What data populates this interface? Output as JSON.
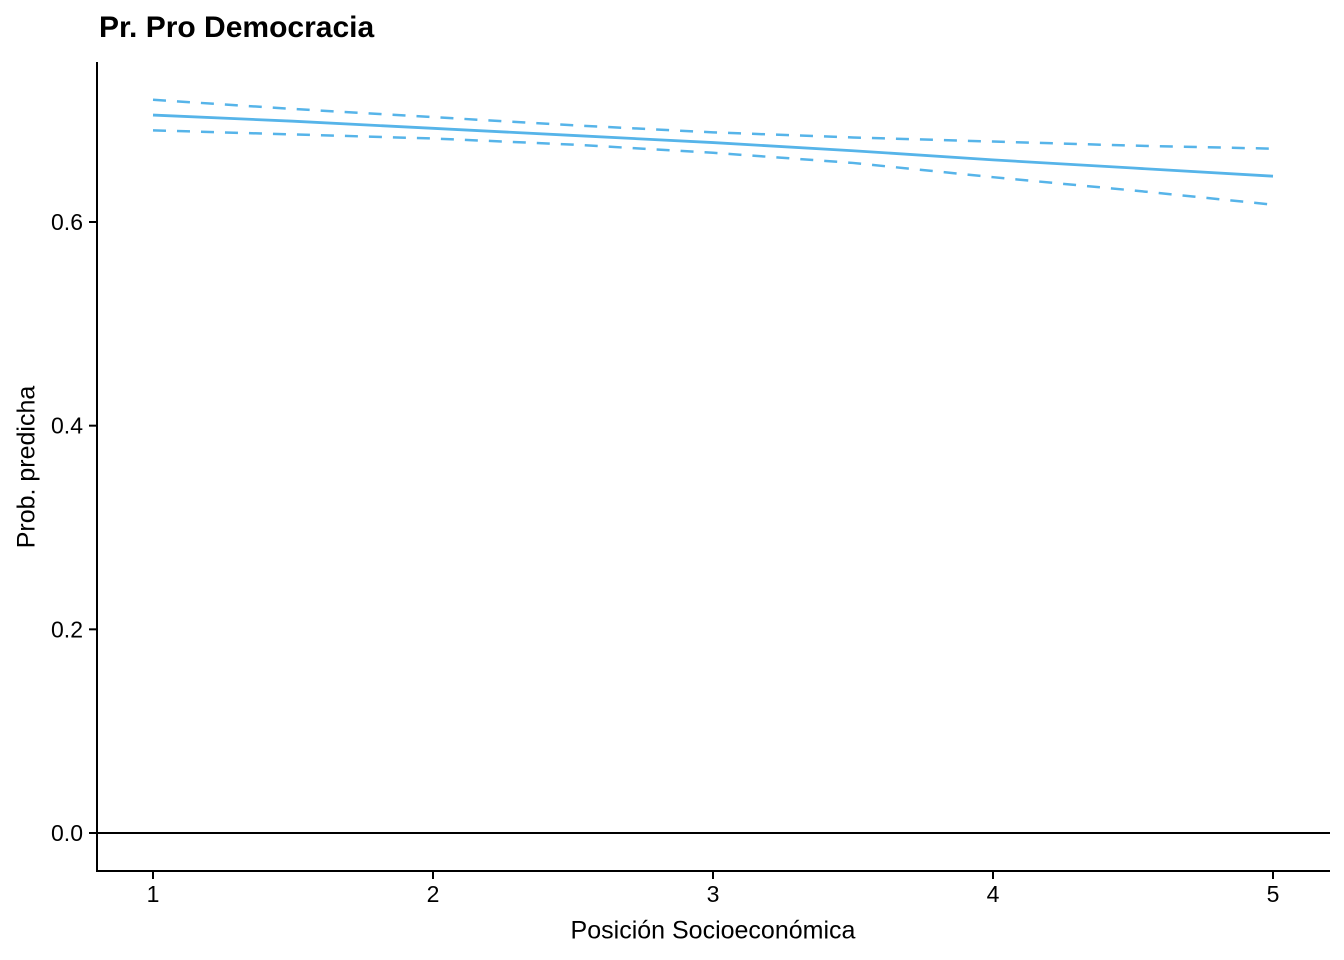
{
  "title": "Pr. Pro Democracia",
  "chart_data": {
    "type": "line",
    "title": "Pr. Pro Democracia",
    "xlabel": "Posición Socioeconómica",
    "ylabel": "Prob. predicha",
    "xlim": [
      0.8,
      5.2
    ],
    "ylim": [
      -0.037,
      0.758
    ],
    "xticks": [
      1,
      2,
      3,
      4,
      5
    ],
    "yticks": [
      0.0,
      0.2,
      0.4,
      0.6
    ],
    "xtick_labels": [
      "1",
      "2",
      "3",
      "4",
      "5"
    ],
    "ytick_labels": [
      "0.0",
      "0.2",
      "0.4",
      "0.6"
    ],
    "grid": false,
    "legend": "none",
    "zero_line": 0.0,
    "line_color": "#56B4E9",
    "axis_color": "#000000",
    "x": [
      1,
      1.5,
      2,
      2.5,
      3,
      3.5,
      4,
      4.5,
      5
    ],
    "series": [
      {
        "name": "predicted-probability",
        "style": "solid",
        "values": [
          0.705,
          0.699,
          0.692,
          0.685,
          0.678,
          0.67,
          0.661,
          0.653,
          0.645
        ]
      },
      {
        "name": "upper-confidence-bound",
        "style": "dashed",
        "values": [
          0.72,
          0.711,
          0.703,
          0.695,
          0.688,
          0.683,
          0.679,
          0.675,
          0.672
        ]
      },
      {
        "name": "lower-confidence-bound",
        "style": "dashed",
        "values": [
          0.69,
          0.686,
          0.682,
          0.676,
          0.668,
          0.658,
          0.644,
          0.631,
          0.617
        ]
      }
    ]
  }
}
